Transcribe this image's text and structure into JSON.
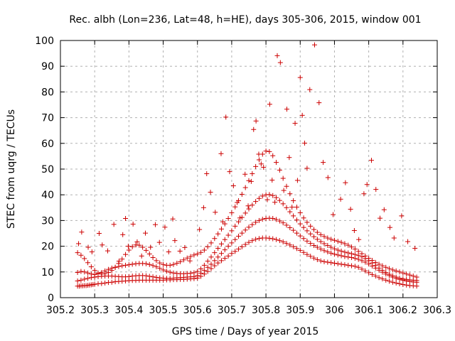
{
  "chart_data": {
    "type": "scatter",
    "title": "Rec. albh (Lon=236, Lat=48, h=HE), days 305-306, 2015, window 001",
    "xlabel": "GPS time / Days of year 2015",
    "ylabel": "STEC from uqrg / TECUs",
    "xlim": [
      305.2,
      306.3
    ],
    "ylim": [
      0,
      100
    ],
    "xticks": [
      305.2,
      305.3,
      305.4,
      305.5,
      305.6,
      305.7,
      305.8,
      305.9,
      306,
      306.1,
      306.2,
      306.3
    ],
    "xtick_labels": [
      "305.2",
      "305.3",
      "305.4",
      "305.5",
      "305.6",
      "305.7",
      "305.8",
      "305.9",
      "306",
      "306.1",
      "306.2",
      "306.3"
    ],
    "yticks": [
      0,
      10,
      20,
      30,
      40,
      50,
      60,
      70,
      80,
      90,
      100
    ],
    "ytick_labels": [
      "0",
      "10",
      "20",
      "30",
      "40",
      "50",
      "60",
      "70",
      "80",
      "90",
      "100"
    ],
    "grid": true,
    "marker": "+",
    "marker_color": "#cc0000",
    "series": [
      {
        "x": [
          305.25,
          305.255,
          305.26,
          305.265,
          305.27,
          305.275,
          305.28,
          305.285,
          305.29,
          305.295,
          305.3,
          305.31,
          305.32,
          305.33,
          305.34,
          305.35,
          305.36,
          305.37,
          305.38,
          305.39,
          305.4,
          305.41,
          305.42,
          305.43,
          305.44,
          305.45,
          305.46,
          305.47,
          305.48,
          305.49,
          305.5,
          305.51,
          305.52,
          305.53,
          305.54,
          305.55,
          305.56,
          305.57,
          305.58,
          305.59,
          305.6,
          305.61,
          305.62,
          305.63,
          305.64,
          305.65,
          305.66,
          305.67,
          305.68,
          305.69,
          305.7,
          305.71,
          305.72,
          305.73,
          305.74,
          305.75,
          305.76,
          305.77,
          305.78,
          305.79,
          305.8,
          305.81,
          305.82,
          305.83,
          305.84,
          305.85,
          305.86,
          305.87,
          305.88,
          305.89,
          305.9,
          305.91,
          305.92,
          305.93,
          305.94,
          305.95,
          305.96,
          305.97,
          305.98,
          305.99,
          306.0,
          306.01,
          306.02,
          306.03,
          306.04,
          306.05,
          306.06,
          306.07,
          306.08,
          306.09,
          306.1,
          306.11,
          306.12,
          306.13,
          306.14,
          306.15,
          306.16,
          306.17,
          306.18,
          306.19,
          306.2,
          306.21,
          306.22,
          306.23,
          306.24
        ],
        "y": [
          4.5,
          4.5,
          4.6,
          4.6,
          4.7,
          4.7,
          4.8,
          4.9,
          5.0,
          5.1,
          5.2,
          5.4,
          5.5,
          5.7,
          5.9,
          6.0,
          6.2,
          6.3,
          6.4,
          6.5,
          6.6,
          6.7,
          6.7,
          6.8,
          6.8,
          6.8,
          6.8,
          6.8,
          6.8,
          6.8,
          6.8,
          6.9,
          6.9,
          7.0,
          7.0,
          7.1,
          7.1,
          7.2,
          7.3,
          7.4,
          7.6,
          8.3,
          9.2,
          10.2,
          11.3,
          12.4,
          13.5,
          14.4,
          15.3,
          16.2,
          17.2,
          18.0,
          18.9,
          19.8,
          20.7,
          21.5,
          22.2,
          22.7,
          23.0,
          23.2,
          23.2,
          23.1,
          22.9,
          22.6,
          22.2,
          21.7,
          21.1,
          20.5,
          19.8,
          19.1,
          18.4,
          17.6,
          16.8,
          16.1,
          15.4,
          14.8,
          14.3,
          14.0,
          13.8,
          13.6,
          13.4,
          13.2,
          13.0,
          12.8,
          12.6,
          12.4,
          12.2,
          11.8,
          11.1,
          10.4,
          9.7,
          9.0,
          8.4,
          7.8,
          7.3,
          6.8,
          6.4,
          6.0,
          5.7,
          5.4,
          5.1,
          4.9,
          4.7,
          4.6,
          4.5
        ]
      },
      {
        "x": [
          305.25,
          305.26,
          305.27,
          305.28,
          305.29,
          305.3,
          305.31,
          305.32,
          305.33,
          305.34,
          305.35,
          305.36,
          305.37,
          305.38,
          305.39,
          305.4,
          305.41,
          305.42,
          305.43,
          305.44,
          305.45,
          305.46,
          305.47,
          305.48,
          305.49,
          305.5,
          305.51,
          305.52,
          305.53,
          305.54,
          305.55,
          305.56,
          305.57,
          305.58,
          305.59,
          305.6,
          305.61,
          305.62,
          305.63,
          305.64,
          305.65,
          305.66,
          305.67,
          305.68,
          305.69,
          305.7,
          305.71,
          305.72,
          305.73,
          305.74,
          305.75,
          305.76,
          305.77,
          305.78,
          305.79,
          305.8,
          305.81,
          305.82,
          305.83,
          305.84,
          305.85,
          305.86,
          305.87,
          305.88,
          305.89,
          305.9,
          305.91,
          305.92,
          305.93,
          305.94,
          305.95,
          305.96,
          305.97,
          305.98,
          305.99,
          306.0,
          306.01,
          306.02,
          306.03,
          306.04,
          306.05,
          306.06,
          306.07,
          306.08,
          306.09,
          306.1,
          306.11,
          306.12,
          306.13,
          306.14,
          306.15,
          306.16,
          306.17,
          306.18,
          306.19,
          306.2,
          306.21,
          306.22,
          306.23,
          306.24
        ],
        "y": [
          6.5,
          6.8,
          7.2,
          7.5,
          7.8,
          8.0,
          8.2,
          8.3,
          8.4,
          8.4,
          8.4,
          8.3,
          8.2,
          8.1,
          8.1,
          8.2,
          8.4,
          8.5,
          8.6,
          8.6,
          8.5,
          8.3,
          8.1,
          7.9,
          7.7,
          7.6,
          7.5,
          7.5,
          7.6,
          7.7,
          7.8,
          7.9,
          8.0,
          8.1,
          8.2,
          8.6,
          9.5,
          10.6,
          11.8,
          13.0,
          14.4,
          15.8,
          17.2,
          18.6,
          20.0,
          21.3,
          22.6,
          23.9,
          25.1,
          26.3,
          27.4,
          28.4,
          29.3,
          30.0,
          30.5,
          30.8,
          30.9,
          30.8,
          30.4,
          29.8,
          29.1,
          28.2,
          27.2,
          26.2,
          25.1,
          24.0,
          23.0,
          22.0,
          21.1,
          20.3,
          19.6,
          18.9,
          18.3,
          17.8,
          17.3,
          16.9,
          16.6,
          16.3,
          16.0,
          15.8,
          15.6,
          15.3,
          14.9,
          14.4,
          13.8,
          13.1,
          12.3,
          11.5,
          10.7,
          9.9,
          9.2,
          8.6,
          8.0,
          7.5,
          7.1,
          6.8,
          6.5,
          6.3,
          6.1,
          6.0
        ]
      },
      {
        "x": [
          305.25,
          305.26,
          305.27,
          305.28,
          305.29,
          305.3,
          305.31,
          305.32,
          305.33,
          305.34,
          305.35,
          305.36,
          305.37,
          305.38,
          305.39,
          305.4,
          305.41,
          305.42,
          305.43,
          305.44,
          305.45,
          305.46,
          305.47,
          305.48,
          305.49,
          305.5,
          305.51,
          305.52,
          305.53,
          305.54,
          305.55,
          305.56,
          305.57,
          305.58,
          305.59,
          305.6,
          305.61,
          305.62,
          305.63,
          305.64,
          305.65,
          305.66,
          305.67,
          305.68,
          305.69,
          305.7,
          305.71,
          305.72,
          305.73,
          305.74,
          305.75,
          305.76,
          305.77,
          305.78,
          305.79,
          305.8,
          305.81,
          305.82,
          305.83,
          305.84,
          305.85,
          305.86,
          305.87,
          305.88,
          305.89,
          305.9,
          305.91,
          305.92,
          305.93,
          305.94,
          305.95,
          305.96,
          305.97,
          305.98,
          305.99,
          306.0,
          306.01,
          306.02,
          306.03,
          306.04,
          306.05,
          306.06,
          306.07,
          306.08,
          306.09,
          306.1,
          306.11,
          306.12,
          306.13,
          306.14,
          306.15,
          306.16,
          306.17,
          306.18,
          306.19,
          306.2,
          306.21,
          306.22,
          306.23,
          306.24
        ],
        "y": [
          9.8,
          10.2,
          10.0,
          9.6,
          9.2,
          9.0,
          9.3,
          9.8,
          10.4,
          11.0,
          11.5,
          11.8,
          12.1,
          12.4,
          12.6,
          12.8,
          13.0,
          13.2,
          13.3,
          13.3,
          13.2,
          12.9,
          12.5,
          12.0,
          11.4,
          10.8,
          10.3,
          9.9,
          9.6,
          9.4,
          9.3,
          9.3,
          9.4,
          9.5,
          9.7,
          10.2,
          11.2,
          12.6,
          14.2,
          15.8,
          17.5,
          19.2,
          20.9,
          22.6,
          24.3,
          26.0,
          27.8,
          29.5,
          31.2,
          32.9,
          34.5,
          36.0,
          37.4,
          38.6,
          39.5,
          40.0,
          40.1,
          39.7,
          38.9,
          37.8,
          36.5,
          35.0,
          33.4,
          31.8,
          30.2,
          28.7,
          27.3,
          26.0,
          24.8,
          23.7,
          22.7,
          21.8,
          21.0,
          20.3,
          19.6,
          19.0,
          18.5,
          18.1,
          17.7,
          17.4,
          17.1,
          16.8,
          16.4,
          15.9,
          15.2,
          14.4,
          13.5,
          12.5,
          11.5,
          10.6,
          9.8,
          9.1,
          8.5,
          8.0,
          7.6,
          7.3,
          7.1,
          6.9,
          6.8,
          6.7
        ]
      },
      {
        "x": [
          305.25,
          305.26,
          305.27,
          305.28,
          305.29,
          305.3,
          305.31,
          305.32,
          305.33,
          305.34,
          305.35,
          305.36,
          305.37,
          305.38,
          305.39,
          305.4,
          305.41,
          305.42,
          305.43,
          305.44,
          305.45,
          305.46,
          305.47,
          305.48,
          305.49,
          305.5,
          305.51,
          305.52,
          305.53,
          305.54,
          305.55,
          305.56,
          305.57,
          305.58,
          305.59,
          305.6,
          305.61,
          305.62,
          305.63,
          305.64,
          305.65,
          305.66,
          305.67,
          305.68,
          305.69,
          305.7,
          305.71,
          305.72,
          305.73,
          305.74,
          305.75,
          305.76,
          305.77,
          305.78,
          305.79,
          305.8,
          305.81,
          305.82,
          305.83,
          305.84,
          305.85,
          305.86,
          305.87,
          305.88,
          305.89,
          305.9,
          305.91,
          305.92,
          305.93,
          305.94,
          305.95,
          305.96,
          305.97,
          305.98,
          305.99,
          306.0,
          306.01,
          306.02,
          306.03,
          306.04,
          306.05,
          306.06,
          306.07,
          306.08,
          306.09,
          306.1,
          306.11,
          306.12,
          306.13,
          306.14,
          306.15,
          306.16,
          306.17,
          306.18,
          306.19,
          306.2,
          306.21,
          306.22,
          306.23,
          306.24
        ],
        "y": [
          17.5,
          16.5,
          15.2,
          13.6,
          12.0,
          10.6,
          9.6,
          9.2,
          9.3,
          9.8,
          10.6,
          11.8,
          13.3,
          15.0,
          16.8,
          18.5,
          19.8,
          20.5,
          20.4,
          19.6,
          18.4,
          17.0,
          15.6,
          14.4,
          13.5,
          12.9,
          12.6,
          12.6,
          12.9,
          13.4,
          14.0,
          14.7,
          15.4,
          16.0,
          16.6,
          17.0,
          17.6,
          18.5,
          19.8,
          21.3,
          23.0,
          24.8,
          26.7,
          28.7,
          30.8,
          33.0,
          35.3,
          37.7,
          40.2,
          42.8,
          45.5,
          48.2,
          51.0,
          53.6,
          55.8,
          57.0,
          56.8,
          55.2,
          52.6,
          49.6,
          46.4,
          43.3,
          40.4,
          37.7,
          35.2,
          33.0,
          31.0,
          29.3,
          27.8,
          26.5,
          25.4,
          24.5,
          23.8,
          23.2,
          22.7,
          22.3,
          21.9,
          21.5,
          21.0,
          20.4,
          19.7,
          18.9,
          18.0,
          17.1,
          16.2,
          15.3,
          14.5,
          13.7,
          13.0,
          12.4,
          11.8,
          11.3,
          10.8,
          10.4,
          10.0,
          9.6,
          9.2,
          8.8,
          8.4,
          8.0
        ]
      },
      {
        "x": [
          305.253,
          305.262,
          305.281,
          305.292,
          305.313,
          305.322,
          305.338,
          305.356,
          305.371,
          305.382,
          305.39,
          305.398,
          305.412,
          305.424,
          305.437,
          305.448,
          305.463,
          305.477,
          305.489,
          305.505,
          305.516,
          305.528,
          305.534,
          305.549,
          305.563,
          305.578,
          305.606,
          305.618,
          305.627,
          305.638,
          305.652,
          305.669,
          305.674,
          305.683,
          305.694,
          305.705,
          305.716,
          305.724,
          305.739,
          305.748,
          305.757,
          305.764,
          305.771,
          305.779,
          305.786,
          305.793,
          305.804,
          305.811,
          305.818,
          305.826,
          305.833,
          305.842,
          305.852,
          305.861,
          305.868,
          305.876,
          305.885,
          305.892,
          305.9,
          305.906,
          305.913,
          305.92,
          305.928,
          305.942,
          305.955,
          305.967,
          305.981,
          305.996,
          306.018,
          306.032,
          306.047,
          306.058,
          306.071,
          306.086,
          306.095,
          306.108,
          306.121,
          306.133,
          306.145,
          306.162,
          306.174,
          306.196,
          306.214,
          306.235
        ],
        "y": [
          21.0,
          25.5,
          19.6,
          17.8,
          25.0,
          20.5,
          18.2,
          28.5,
          14.2,
          24.5,
          30.8,
          20.0,
          28.6,
          21.7,
          16.2,
          25.1,
          19.6,
          28.4,
          21.5,
          27.4,
          17.8,
          30.6,
          22.2,
          18.1,
          19.5,
          14.3,
          26.5,
          35.0,
          48.2,
          41.0,
          33.2,
          56.0,
          29.5,
          70.2,
          49.0,
          43.5,
          37.0,
          31.0,
          48.0,
          35.7,
          45.2,
          65.4,
          68.7,
          55.8,
          52.0,
          50.7,
          38.1,
          75.2,
          45.7,
          37.1,
          94.1,
          91.4,
          41.7,
          73.3,
          54.5,
          35.2,
          67.8,
          45.6,
          85.6,
          70.9,
          60.1,
          50.3,
          80.9,
          98.3,
          75.8,
          52.6,
          46.7,
          32.3,
          38.3,
          44.7,
          34.4,
          26.1,
          22.6,
          40.4,
          44.0,
          53.4,
          42.1,
          30.9,
          34.2,
          27.3,
          23.2,
          31.8,
          21.8,
          19.2
        ]
      }
    ]
  }
}
